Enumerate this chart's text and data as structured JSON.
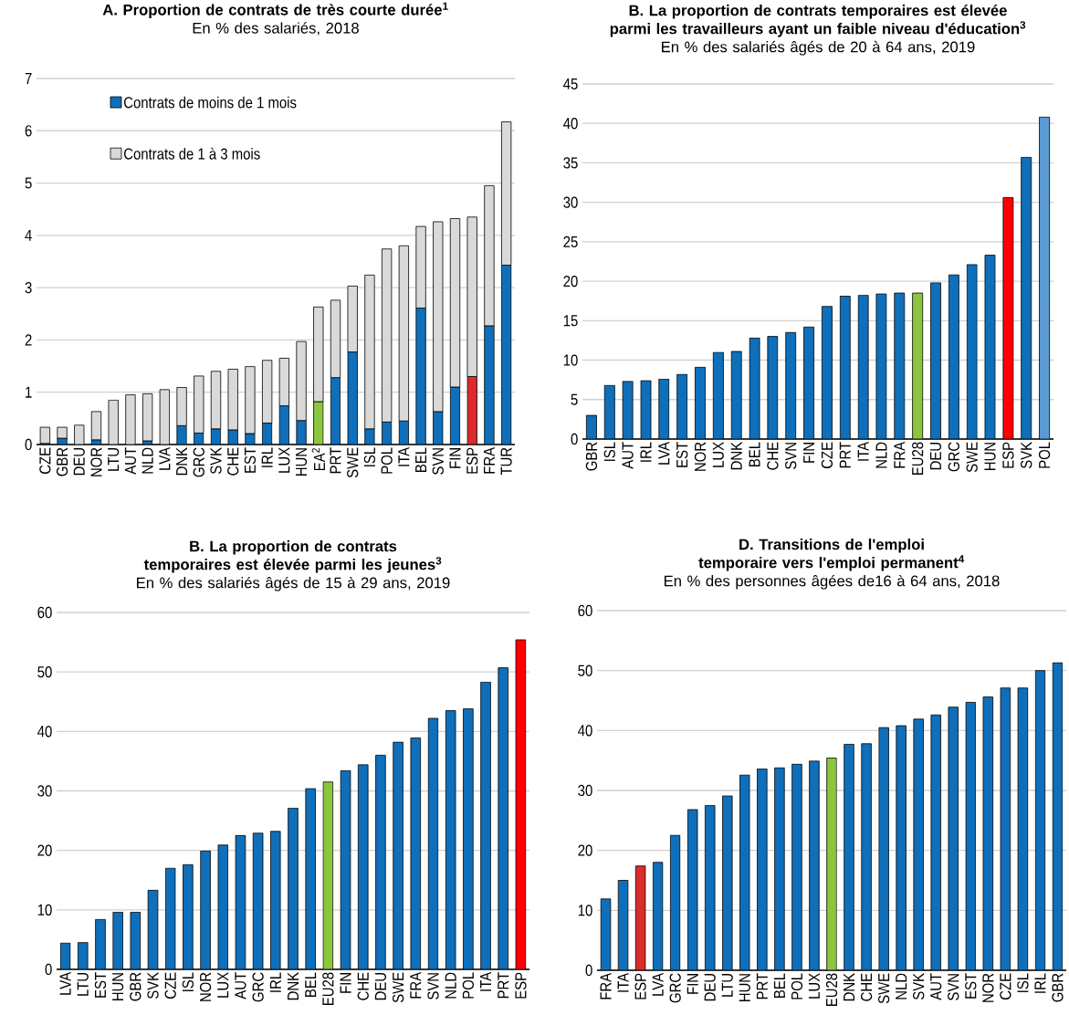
{
  "chart_data": [
    {
      "type": "bar",
      "stacked": true,
      "title": "A. Proportion de contrats de très courte durée$^{1}$",
      "subtitle": "En % des salariés, 2018",
      "categories": [
        "CZE",
        "GBR",
        "DEU",
        "NOR",
        "LTU",
        "AUT",
        "NLD",
        "LVA",
        "DNK",
        "GRC",
        "SVK",
        "CHE",
        "EST",
        "IRL",
        "LUX",
        "HUN",
        "EA$^{2}$",
        "PRT",
        "SWE",
        "ISL",
        "POL",
        "ITA",
        "BEL",
        "SVN",
        "FIN",
        "ESP",
        "FRA",
        "TUR"
      ],
      "series": [
        {
          "name": "Contrats de moins de 1 mois",
          "color": "#0f6fba",
          "colors": [
            "#0f6fba",
            "#0f6fba",
            "#0f6fba",
            "#0f6fba",
            "#0f6fba",
            "#0f6fba",
            "#0f6fba",
            "#0f6fba",
            "#0f6fba",
            "#0f6fba",
            "#0f6fba",
            "#0f6fba",
            "#0f6fba",
            "#0f6fba",
            "#0f6fba",
            "#0f6fba",
            "#8cc63f",
            "#0f6fba",
            "#0f6fba",
            "#0f6fba",
            "#0f6fba",
            "#0f6fba",
            "#0f6fba",
            "#0f6fba",
            "#0f6fba",
            "#dc2b2b",
            "#0f6fba",
            "#0f6fba"
          ],
          "values": [
            0.02,
            0.12,
            0.0,
            0.09,
            0.0,
            0.0,
            0.07,
            0.0,
            0.36,
            0.22,
            0.3,
            0.28,
            0.21,
            0.41,
            0.74,
            0.46,
            0.82,
            1.28,
            1.77,
            0.3,
            0.43,
            0.45,
            2.61,
            0.63,
            1.1,
            1.3,
            2.27,
            3.43
          ]
        },
        {
          "name": "Contrats de 1 à 3 mois",
          "color": "#d9d9d9",
          "values": [
            0.31,
            0.21,
            0.37,
            0.54,
            0.85,
            0.95,
            0.9,
            1.05,
            0.73,
            1.09,
            1.1,
            1.16,
            1.28,
            1.2,
            0.91,
            1.51,
            1.81,
            1.48,
            1.26,
            2.94,
            3.31,
            3.35,
            1.56,
            3.63,
            3.22,
            3.05,
            2.68,
            2.74
          ]
        }
      ],
      "ylim": [
        0,
        7
      ],
      "yticks": [
        0,
        1,
        2,
        3,
        4,
        5,
        6,
        7
      ],
      "grid": "y",
      "legend": "top left"
    },
    {
      "type": "bar",
      "title": "B. La proportion de contrats temporaires est élevée parmi les travailleurs ayant un faible niveau d'éducation$^{3}$",
      "subtitle": "En % des salariés âgés de 20 à 64 ans, 2019",
      "categories": [
        "GBR",
        "ISL",
        "AUT",
        "IRL",
        "LVA",
        "EST",
        "NOR",
        "LUX",
        "DNK",
        "BEL",
        "CHE",
        "SVN",
        "FIN",
        "CZE",
        "PRT",
        "ITA",
        "NLD",
        "FRA",
        "EU28",
        "DEU",
        "GRC",
        "SWE",
        "HUN",
        "ESP",
        "SVK",
        "POL"
      ],
      "values": [
        3.0,
        6.8,
        7.3,
        7.4,
        7.6,
        8.2,
        9.1,
        11.0,
        11.1,
        12.8,
        13.0,
        13.5,
        14.2,
        16.8,
        18.1,
        18.2,
        18.4,
        18.5,
        18.5,
        19.8,
        20.8,
        22.1,
        23.3,
        30.6,
        35.7,
        40.8
      ],
      "colors": [
        "#0f6fba",
        "#0f6fba",
        "#0f6fba",
        "#0f6fba",
        "#0f6fba",
        "#0f6fba",
        "#0f6fba",
        "#0f6fba",
        "#0f6fba",
        "#0f6fba",
        "#0f6fba",
        "#0f6fba",
        "#0f6fba",
        "#0f6fba",
        "#0f6fba",
        "#0f6fba",
        "#0f6fba",
        "#0f6fba",
        "#8cc63f",
        "#0f6fba",
        "#0f6fba",
        "#0f6fba",
        "#0f6fba",
        "#ff0000",
        "#0f6fba",
        "#5b9bd5"
      ],
      "ylim": [
        0,
        45
      ],
      "yticks": [
        0,
        5,
        10,
        15,
        20,
        25,
        30,
        35,
        40,
        45
      ],
      "grid": "y"
    },
    {
      "type": "bar",
      "title": "B. La proportion de contrats temporaires est élevée parmi les jeunes$^{3}$",
      "subtitle": "En % des salariés âgés de 15 à 29 ans, 2019",
      "categories": [
        "LVA",
        "LTU",
        "EST",
        "HUN",
        "GBR",
        "SVK",
        "CZE",
        "ISL",
        "NOR",
        "LUX",
        "AUT",
        "GRC",
        "IRL",
        "DNK",
        "BEL",
        "EU28",
        "FIN",
        "CHE",
        "DEU",
        "SWE",
        "FRA",
        "SVN",
        "NLD",
        "POL",
        "ITA",
        "PRT",
        "ESP"
      ],
      "values": [
        4.4,
        4.5,
        8.4,
        9.6,
        9.6,
        13.3,
        17.0,
        17.6,
        19.9,
        20.9,
        22.5,
        22.9,
        23.2,
        27.1,
        30.4,
        31.5,
        33.4,
        34.4,
        36.0,
        38.2,
        38.9,
        42.2,
        43.5,
        43.8,
        48.3,
        50.7,
        55.4
      ],
      "colors": [
        "#0f6fba",
        "#0f6fba",
        "#0f6fba",
        "#0f6fba",
        "#0f6fba",
        "#0f6fba",
        "#0f6fba",
        "#0f6fba",
        "#0f6fba",
        "#0f6fba",
        "#0f6fba",
        "#0f6fba",
        "#0f6fba",
        "#0f6fba",
        "#0f6fba",
        "#8cc63f",
        "#0f6fba",
        "#0f6fba",
        "#0f6fba",
        "#0f6fba",
        "#0f6fba",
        "#0f6fba",
        "#0f6fba",
        "#0f6fba",
        "#0f6fba",
        "#0f6fba",
        "#ff0000"
      ],
      "ylim": [
        0,
        60
      ],
      "yticks": [
        0,
        10,
        20,
        30,
        40,
        50,
        60
      ],
      "grid": "y"
    },
    {
      "type": "bar",
      "title": "D. Transitions de l'emploi temporaire vers l'emploi permanent$^{4}$",
      "subtitle": "En % des personnes âgées de16 à 64 ans, 2018",
      "categories": [
        "FRA",
        "ITA",
        "ESP",
        "LVA",
        "GRC",
        "FIN",
        "DEU",
        "LTU",
        "HUN",
        "PRT",
        "BEL",
        "POL",
        "LUX",
        "EU28",
        "DNK",
        "CHE",
        "SWE",
        "NLD",
        "SVK",
        "AUT",
        "SVN",
        "EST",
        "NOR",
        "CZE",
        "ISL",
        "IRL",
        "GBR"
      ],
      "values": [
        11.9,
        15.0,
        17.4,
        18.0,
        22.5,
        26.8,
        27.5,
        29.1,
        32.6,
        33.6,
        33.8,
        34.4,
        34.9,
        35.4,
        37.7,
        37.8,
        40.5,
        40.8,
        41.9,
        42.6,
        43.9,
        44.7,
        45.6,
        47.1,
        47.1,
        50.0,
        51.3
      ],
      "colors": [
        "#0f6fba",
        "#0f6fba",
        "#dc2b2b",
        "#0f6fba",
        "#0f6fba",
        "#0f6fba",
        "#0f6fba",
        "#0f6fba",
        "#0f6fba",
        "#0f6fba",
        "#0f6fba",
        "#0f6fba",
        "#0f6fba",
        "#8cc63f",
        "#0f6fba",
        "#0f6fba",
        "#0f6fba",
        "#0f6fba",
        "#0f6fba",
        "#0f6fba",
        "#0f6fba",
        "#0f6fba",
        "#0f6fba",
        "#0f6fba",
        "#0f6fba",
        "#0f6fba",
        "#0f6fba"
      ],
      "ylim": [
        0,
        60
      ],
      "yticks": [
        0,
        10,
        20,
        30,
        40,
        50,
        60
      ],
      "grid": "y"
    }
  ]
}
